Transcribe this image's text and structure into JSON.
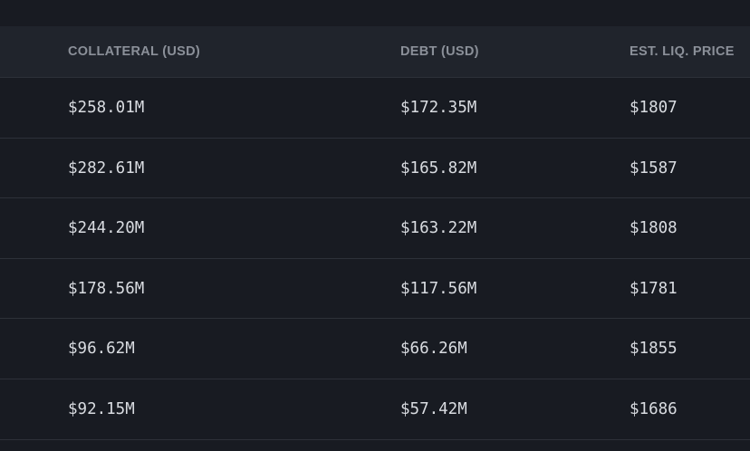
{
  "table": {
    "columns": [
      {
        "key": "collateral",
        "label": "COLLATERAL (USD)"
      },
      {
        "key": "debt",
        "label": "DEBT (USD)"
      },
      {
        "key": "liq_price",
        "label": "EST. LIQ. PRICE"
      }
    ],
    "rows": [
      {
        "collateral": "$258.01M",
        "debt": "$172.35M",
        "liq_price": "$1807"
      },
      {
        "collateral": "$282.61M",
        "debt": "$165.82M",
        "liq_price": "$1587"
      },
      {
        "collateral": "$244.20M",
        "debt": "$163.22M",
        "liq_price": "$1808"
      },
      {
        "collateral": "$178.56M",
        "debt": "$117.56M",
        "liq_price": "$1781"
      },
      {
        "collateral": "$96.62M",
        "debt": "$66.26M",
        "liq_price": "$1855"
      },
      {
        "collateral": "$92.15M",
        "debt": "$57.42M",
        "liq_price": "$1686"
      }
    ]
  }
}
